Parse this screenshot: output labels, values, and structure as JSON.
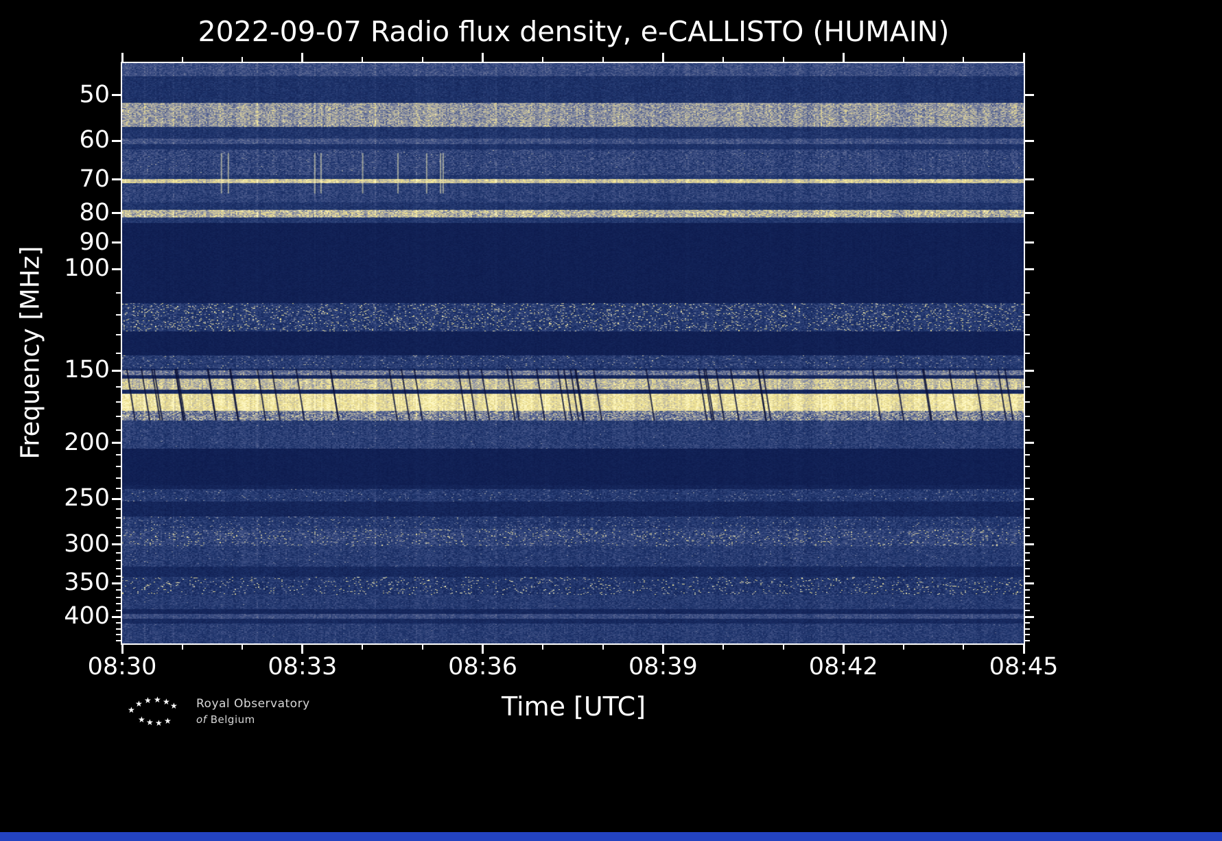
{
  "title": "2022-09-07 Radio flux density, e-CALLISTO (HUMAIN)",
  "axes": {
    "x_label": "Time [UTC]",
    "y_label": "Frequency [MHz]",
    "x_tick_labels": [
      "08:30",
      "08:33",
      "08:36",
      "08:39",
      "08:42",
      "08:45"
    ],
    "y_tick_labels": [
      "50",
      "60",
      "70",
      "80",
      "90",
      "100",
      "150",
      "200",
      "250",
      "300",
      "350",
      "400"
    ]
  },
  "logo": {
    "line1": "Royal Observatory",
    "line2_italic": "of",
    "line2_rest": "Belgium"
  },
  "colors": {
    "background": "#000000",
    "text": "#ffffff",
    "frame": "#ffffff",
    "bottom_strip": "#2343c0"
  },
  "chart_data": {
    "type": "heatmap",
    "title": "2022-09-07 Radio flux density, e-CALLISTO (HUMAIN)",
    "xlabel": "Time [UTC]",
    "ylabel": "Frequency [MHz]",
    "x_range_utc": [
      "08:30",
      "08:45"
    ],
    "x_major_ticks_min": [
      0,
      3,
      6,
      9,
      12,
      15
    ],
    "x_minor_ticks_min": [
      1,
      2,
      4,
      5,
      7,
      8,
      10,
      11,
      13,
      14
    ],
    "y_scale": "log",
    "y_range_mhz": [
      44,
      445
    ],
    "y_major_ticks": [
      50,
      60,
      70,
      80,
      90,
      100,
      150,
      200,
      250,
      300,
      350,
      400
    ],
    "y_minor_ticks": [
      110,
      120,
      130,
      140,
      160,
      170,
      180,
      190,
      210,
      220,
      230,
      240,
      260,
      270,
      280,
      290,
      310,
      320,
      330,
      340,
      360,
      370,
      380,
      390,
      410,
      420,
      430,
      440
    ],
    "colormap_stops": [
      [
        0.0,
        "#0a1648"
      ],
      [
        0.3,
        "#20366e"
      ],
      [
        0.48,
        "#46568a"
      ],
      [
        0.62,
        "#7d85a0"
      ],
      [
        0.78,
        "#c2bca4"
      ],
      [
        0.9,
        "#eee08c"
      ],
      [
        1.0,
        "#fdf6c0"
      ]
    ],
    "seed": 20220907,
    "bands": [
      {
        "f1": 44.0,
        "f2": 46.3,
        "base": 0.42,
        "noise": 0.12,
        "speckle": 0.0,
        "boost": 0.0
      },
      {
        "f1": 46.3,
        "f2": 51.5,
        "base": 0.26,
        "noise": 0.1,
        "speckle": 0.0,
        "boost": 0.0
      },
      {
        "f1": 51.5,
        "f2": 56.7,
        "base": 0.66,
        "noise": 0.16,
        "speckle": 0.05,
        "boost": 0.15
      },
      {
        "f1": 56.7,
        "f2": 59.3,
        "base": 0.28,
        "noise": 0.1,
        "speckle": 0.0,
        "boost": 0.0
      },
      {
        "f1": 59.3,
        "f2": 60.6,
        "base": 0.44,
        "noise": 0.12,
        "speckle": 0.0,
        "boost": 0.0
      },
      {
        "f1": 60.6,
        "f2": 62.0,
        "base": 0.26,
        "noise": 0.09,
        "speckle": 0.0,
        "boost": 0.0
      },
      {
        "f1": 62.0,
        "f2": 68.6,
        "base": 0.38,
        "noise": 0.15,
        "speckle": 0.02,
        "boost": 0.2
      },
      {
        "f1": 68.6,
        "f2": 69.8,
        "base": 0.3,
        "noise": 0.1,
        "speckle": 0.0,
        "boost": 0.0
      },
      {
        "f1": 69.8,
        "f2": 70.9,
        "base": 0.82,
        "noise": 0.12,
        "speckle": 0.0,
        "boost": 0.0
      },
      {
        "f1": 70.9,
        "f2": 76.5,
        "base": 0.36,
        "noise": 0.13,
        "speckle": 0.0,
        "boost": 0.0
      },
      {
        "f1": 76.5,
        "f2": 79.0,
        "base": 0.28,
        "noise": 0.1,
        "speckle": 0.0,
        "boost": 0.0
      },
      {
        "f1": 79.0,
        "f2": 81.2,
        "base": 0.74,
        "noise": 0.18,
        "speckle": 0.1,
        "boost": 0.15
      },
      {
        "f1": 81.2,
        "f2": 83.0,
        "base": 0.3,
        "noise": 0.1,
        "speckle": 0.0,
        "boost": 0.0
      },
      {
        "f1": 83.0,
        "f2": 114.5,
        "base": 0.1,
        "noise": 0.045,
        "speckle": 0.0,
        "boost": 0.0
      },
      {
        "f1": 114.5,
        "f2": 128.0,
        "base": 0.3,
        "noise": 0.14,
        "speckle": 0.1,
        "boost": 0.55
      },
      {
        "f1": 128.0,
        "f2": 141.0,
        "base": 0.1,
        "noise": 0.045,
        "speckle": 0.0,
        "boost": 0.0
      },
      {
        "f1": 141.0,
        "f2": 148.5,
        "base": 0.32,
        "noise": 0.14,
        "speckle": 0.05,
        "boost": 0.35
      },
      {
        "f1": 148.5,
        "f2": 149.5,
        "base": 0.22,
        "noise": 0.08,
        "speckle": 0.0,
        "boost": 0.0
      },
      {
        "f1": 149.5,
        "f2": 152.6,
        "base": 0.56,
        "noise": 0.15,
        "speckle": 0.04,
        "boost": 0.2
      },
      {
        "f1": 152.6,
        "f2": 154.6,
        "base": 0.16,
        "noise": 0.07,
        "speckle": 0.0,
        "boost": 0.0
      },
      {
        "f1": 154.6,
        "f2": 161.4,
        "base": 0.78,
        "noise": 0.14,
        "speckle": 0.06,
        "boost": 0.15
      },
      {
        "f1": 161.4,
        "f2": 164.0,
        "base": 0.18,
        "noise": 0.08,
        "speckle": 0.0,
        "boost": 0.0
      },
      {
        "f1": 164.0,
        "f2": 175.7,
        "base": 0.9,
        "noise": 0.1,
        "speckle": 0.05,
        "boost": 0.1
      },
      {
        "f1": 175.7,
        "f2": 182.6,
        "base": 0.58,
        "noise": 0.2,
        "speckle": 0.12,
        "boost": 0.3
      },
      {
        "f1": 182.6,
        "f2": 204.5,
        "base": 0.34,
        "noise": 0.13,
        "speckle": 0.01,
        "boost": 0.2
      },
      {
        "f1": 204.5,
        "f2": 236.0,
        "base": 0.1,
        "noise": 0.045,
        "speckle": 0.0,
        "boost": 0.0
      },
      {
        "f1": 236.0,
        "f2": 240.0,
        "base": 0.14,
        "noise": 0.06,
        "speckle": 0.0,
        "boost": 0.0
      },
      {
        "f1": 240.0,
        "f2": 252.4,
        "base": 0.3,
        "noise": 0.13,
        "speckle": 0.05,
        "boost": 0.3
      },
      {
        "f1": 252.4,
        "f2": 268.0,
        "base": 0.15,
        "noise": 0.07,
        "speckle": 0.0,
        "boost": 0.0
      },
      {
        "f1": 268.0,
        "f2": 281.6,
        "base": 0.3,
        "noise": 0.13,
        "speckle": 0.06,
        "boost": 0.35
      },
      {
        "f1": 281.6,
        "f2": 301.0,
        "base": 0.36,
        "noise": 0.15,
        "speckle": 0.08,
        "boost": 0.45
      },
      {
        "f1": 301.0,
        "f2": 327.5,
        "base": 0.32,
        "noise": 0.13,
        "speckle": 0.02,
        "boost": 0.25
      },
      {
        "f1": 327.5,
        "f2": 341.0,
        "base": 0.18,
        "noise": 0.08,
        "speckle": 0.0,
        "boost": 0.0
      },
      {
        "f1": 341.0,
        "f2": 365.6,
        "base": 0.28,
        "noise": 0.14,
        "speckle": 0.06,
        "boost": 0.6
      },
      {
        "f1": 365.6,
        "f2": 388.0,
        "base": 0.32,
        "noise": 0.12,
        "speckle": 0.01,
        "boost": 0.2
      },
      {
        "f1": 388.0,
        "f2": 395.0,
        "base": 0.16,
        "noise": 0.06,
        "speckle": 0.0,
        "boost": 0.0
      },
      {
        "f1": 395.0,
        "f2": 402.5,
        "base": 0.42,
        "noise": 0.1,
        "speckle": 0.0,
        "boost": 0.0
      },
      {
        "f1": 402.5,
        "f2": 411.0,
        "base": 0.18,
        "noise": 0.07,
        "speckle": 0.0,
        "boost": 0.0
      },
      {
        "f1": 411.0,
        "f2": 445.0,
        "base": 0.33,
        "noise": 0.12,
        "speckle": 0.01,
        "boost": 0.15
      }
    ],
    "dark_slashes": {
      "count": 48,
      "f1": 149,
      "f2": 183
    },
    "bright_streaks": {
      "count": 9,
      "f1": 63,
      "f2": 74,
      "x_min_frac": 0.1,
      "x_max_frac": 0.38
    }
  }
}
